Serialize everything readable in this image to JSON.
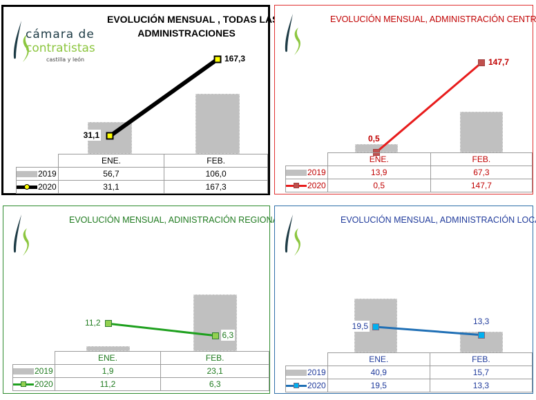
{
  "logo": {
    "line1": "cámara de",
    "line2": "contratistas",
    "line3": "castilla y león"
  },
  "chart_data": [
    {
      "type": "bar+line",
      "title_line1": "EVOLUCIÓN MENSUAL , TODAS LAS",
      "title_line2": "ADMINISTRACIONES",
      "categories": [
        "ENE.",
        "FEB."
      ],
      "series": [
        {
          "name": "2019",
          "type": "bar",
          "values": [
            56.7,
            106.0
          ],
          "labels": [
            "56,7",
            "106,0"
          ]
        },
        {
          "name": "2020",
          "type": "line",
          "values": [
            31.1,
            167.3
          ],
          "labels": [
            "31,1",
            "167,3"
          ]
        }
      ],
      "colors": {
        "border": "#000000",
        "text": "#000000",
        "line": "#000000",
        "marker": "#ffff00",
        "marker_border": "#000000"
      }
    },
    {
      "type": "bar+line",
      "title_line1": "EVOLUCIÓN MENSUAL, ADMINISTRACIÓN CENTRAL",
      "categories": [
        "ENE.",
        "FEB."
      ],
      "series": [
        {
          "name": "2019",
          "type": "bar",
          "values": [
            13.9,
            67.3
          ],
          "labels": [
            "13,9",
            "67,3"
          ]
        },
        {
          "name": "2020",
          "type": "line",
          "values": [
            0.5,
            147.7
          ],
          "labels": [
            "0,5",
            "147,7"
          ]
        }
      ],
      "colors": {
        "border": "#e03030",
        "text": "#c00000",
        "line": "#e81c1c",
        "marker": "#c0504d",
        "marker_border": "#a04040"
      }
    },
    {
      "type": "bar+line",
      "title_line1": "EVOLUCIÓN MENSUAL, ADINISTRACIÓN REGIONAL",
      "categories": [
        "ENE.",
        "FEB."
      ],
      "series": [
        {
          "name": "2019",
          "type": "bar",
          "values": [
            1.9,
            23.1
          ],
          "labels": [
            "1,9",
            "23,1"
          ]
        },
        {
          "name": "2020",
          "type": "line",
          "values": [
            11.2,
            6.3
          ],
          "labels": [
            "11,2",
            "6,3"
          ]
        }
      ],
      "colors": {
        "border": "#2e8b2e",
        "text": "#1e7a1e",
        "line": "#1ea01e",
        "marker": "#92d050",
        "marker_border": "#2e7d2e"
      }
    },
    {
      "type": "bar+line",
      "title_line1": "EVOLUCIÓN MENSUAL, ADMINISTRACIÓN LOCAL",
      "categories": [
        "ENE.",
        "FEB."
      ],
      "series": [
        {
          "name": "2019",
          "type": "bar",
          "values": [
            40.9,
            15.7
          ],
          "labels": [
            "40,9",
            "15,7"
          ]
        },
        {
          "name": "2020",
          "type": "line",
          "values": [
            19.5,
            13.3
          ],
          "labels": [
            "19,5",
            "13,3"
          ]
        }
      ],
      "colors": {
        "border": "#2e6fa8",
        "text": "#1f3a9b",
        "line": "#1f6fb5",
        "marker": "#00b0f0",
        "marker_border": "#7a6a80"
      }
    }
  ]
}
